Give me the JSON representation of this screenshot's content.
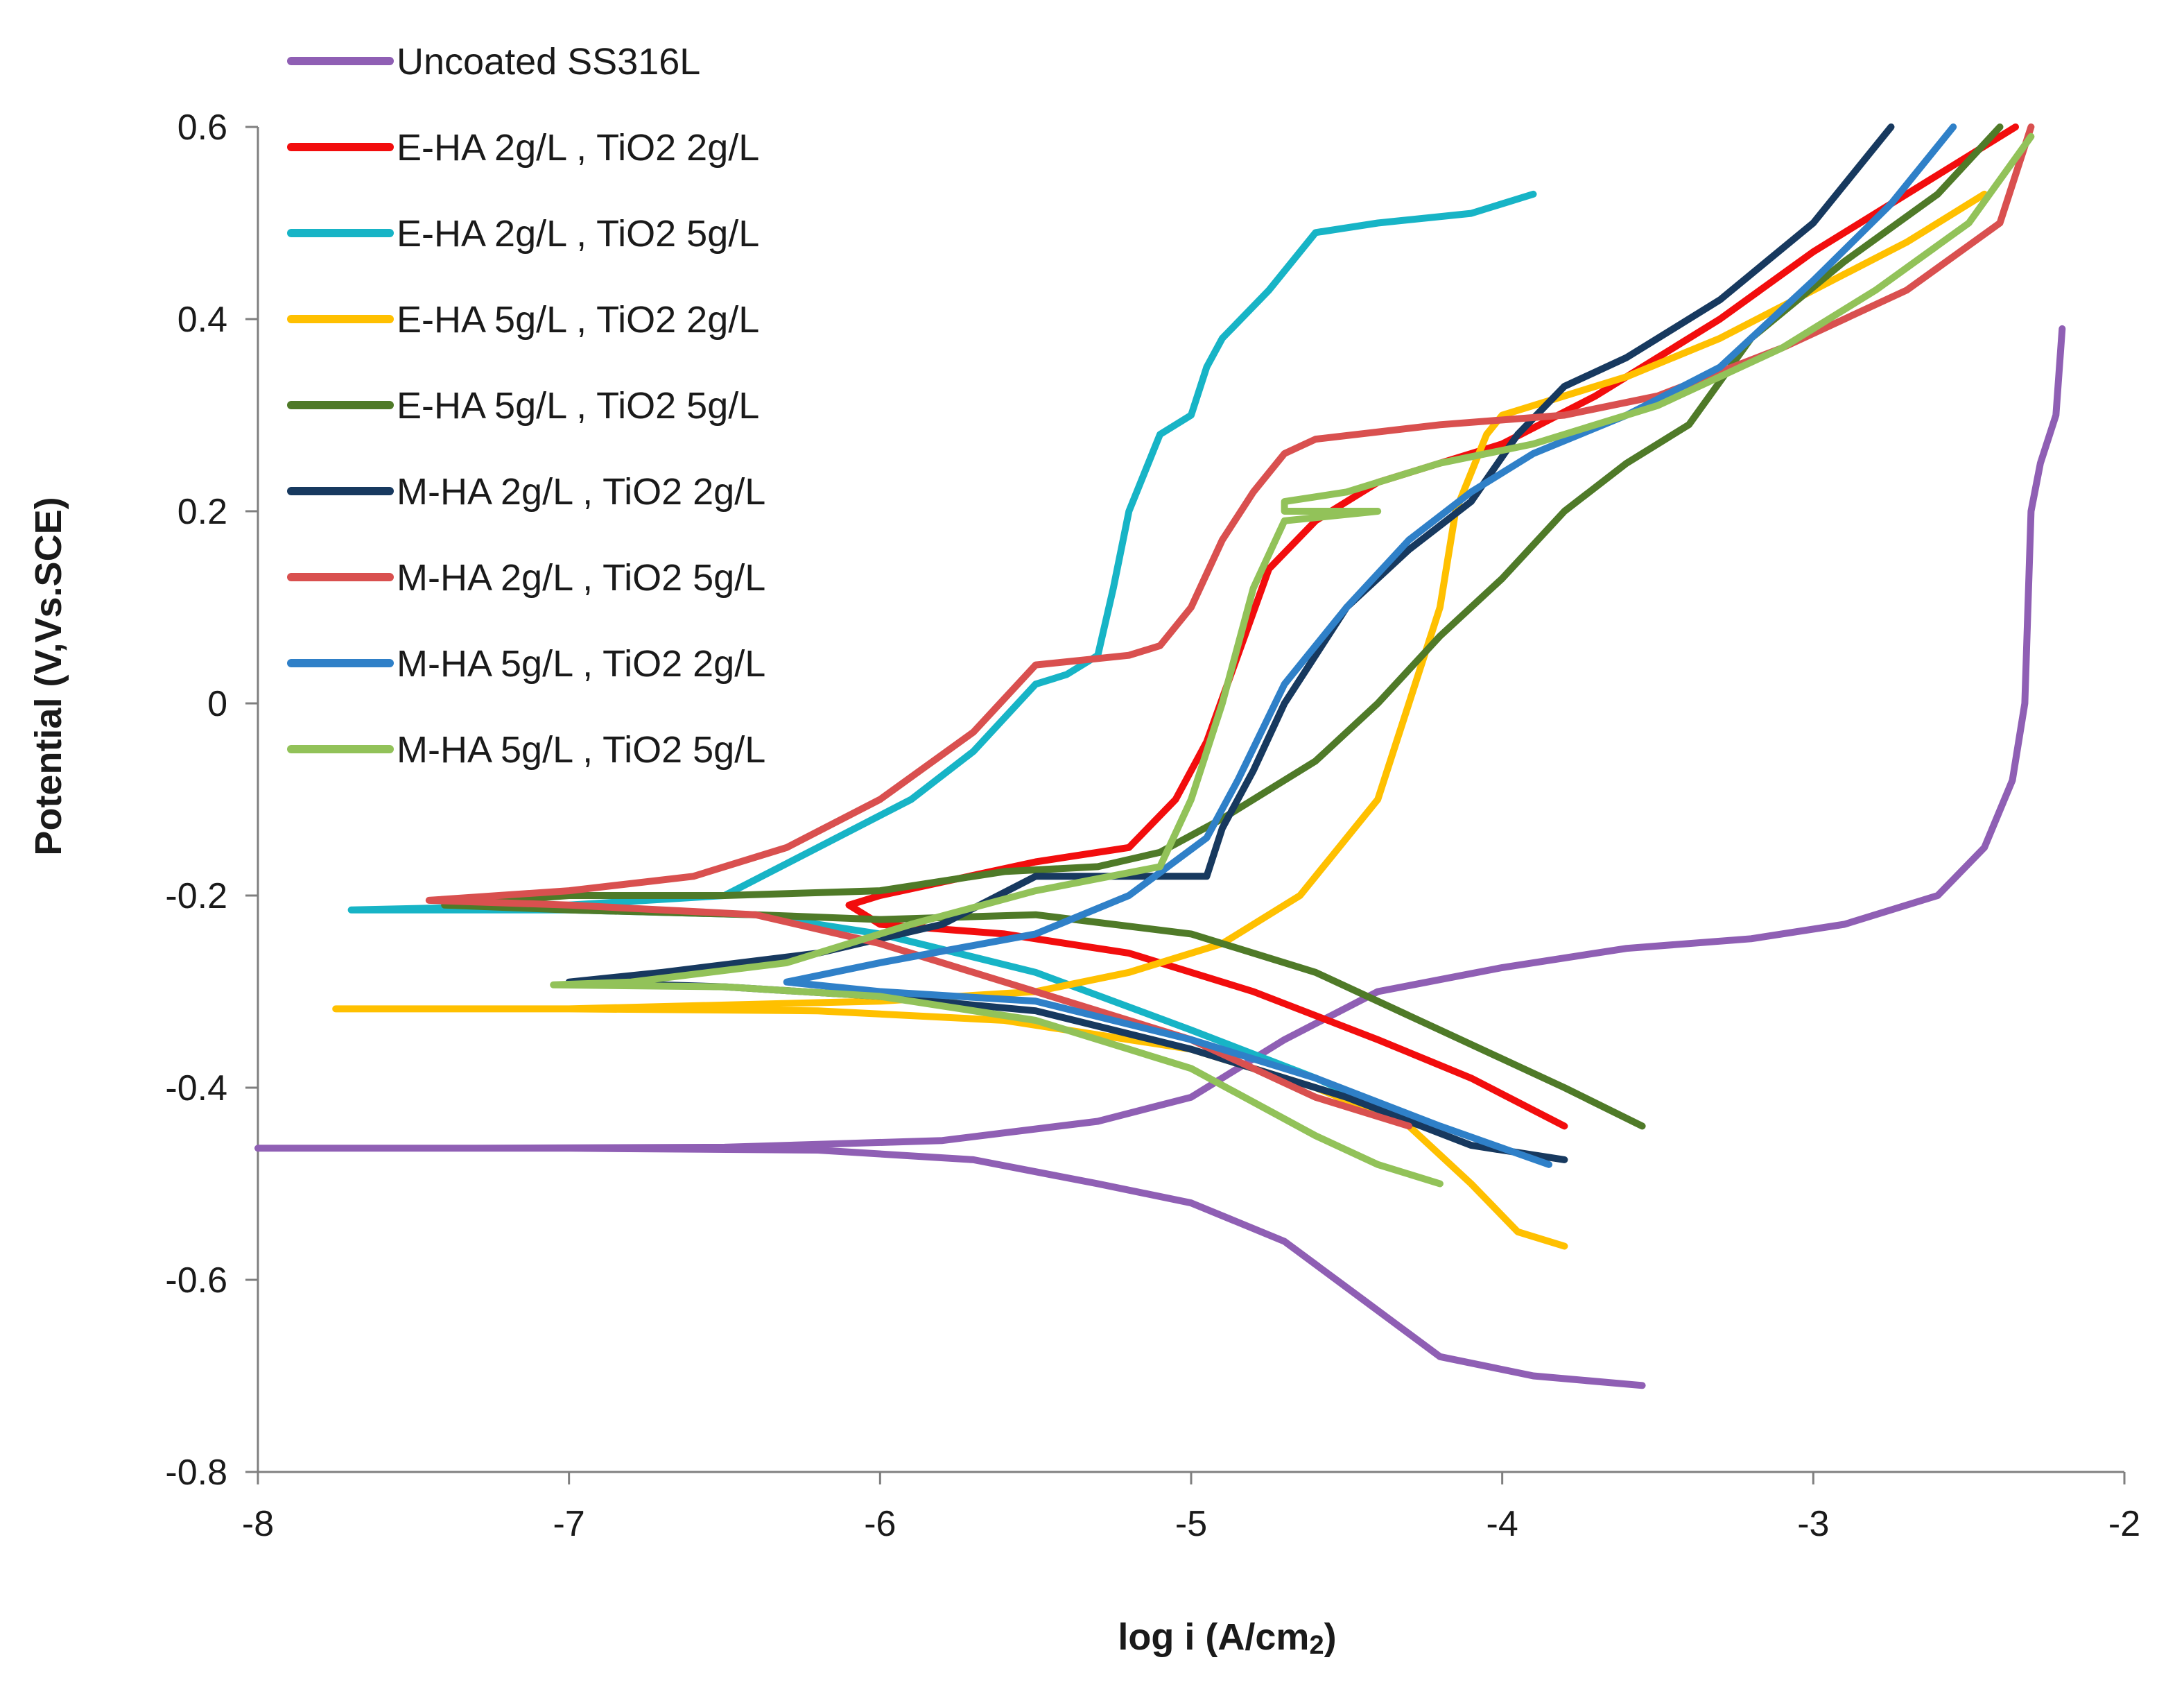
{
  "chart_data": {
    "type": "line",
    "xlabel": "log i (A/cm",
    "xlabel_sub": "2",
    "xlabel_end": ")",
    "ylabel": "Potential (V,Vs.SCE)",
    "xlim": [
      -8,
      -2
    ],
    "ylim": [
      -0.8,
      0.6
    ],
    "x_ticks": [
      -8,
      -7,
      -6,
      -5,
      -4,
      -3,
      -2
    ],
    "y_ticks": [
      -0.8,
      -0.6,
      -0.4,
      -0.2,
      0,
      0.2,
      0.4,
      0.6
    ],
    "x_tick_labels": [
      "-8",
      "-7",
      "-6",
      "-5",
      "-4",
      "-3",
      "-2"
    ],
    "y_tick_labels": [
      "-0.8",
      "-0.6",
      "-0.4",
      "-0.2",
      "0",
      "0.2",
      "0.4",
      "0.6"
    ],
    "legend_position": "top-left",
    "series": [
      {
        "name": "Uncoated SS316L",
        "color": "#8f5fb4",
        "points": [
          [
            -2.2,
            0.39
          ],
          [
            -2.22,
            0.3
          ],
          [
            -2.27,
            0.25
          ],
          [
            -2.3,
            0.2
          ],
          [
            -2.32,
            0.0
          ],
          [
            -2.36,
            -0.08
          ],
          [
            -2.45,
            -0.15
          ],
          [
            -2.6,
            -0.2
          ],
          [
            -2.9,
            -0.23
          ],
          [
            -3.2,
            -0.245
          ],
          [
            -3.6,
            -0.255
          ],
          [
            -4.0,
            -0.275
          ],
          [
            -4.4,
            -0.3
          ],
          [
            -4.7,
            -0.35
          ],
          [
            -5.0,
            -0.41
          ],
          [
            -5.3,
            -0.435
          ],
          [
            -5.8,
            -0.455
          ],
          [
            -6.5,
            -0.462
          ],
          [
            -7.3,
            -0.463
          ],
          [
            -8.0,
            -0.463
          ],
          [
            -7.0,
            -0.463
          ],
          [
            -6.2,
            -0.465
          ],
          [
            -5.7,
            -0.475
          ],
          [
            -5.3,
            -0.5
          ],
          [
            -5.0,
            -0.52
          ],
          [
            -4.7,
            -0.56
          ],
          [
            -4.45,
            -0.62
          ],
          [
            -4.2,
            -0.68
          ],
          [
            -3.9,
            -0.7
          ],
          [
            -3.55,
            -0.71
          ]
        ]
      },
      {
        "name": "E-HA 2g/L , TiO2 2g/L",
        "color": "#f20d0d",
        "points": [
          [
            -2.35,
            0.6
          ],
          [
            -2.6,
            0.55
          ],
          [
            -3.0,
            0.47
          ],
          [
            -3.3,
            0.4
          ],
          [
            -3.5,
            0.36
          ],
          [
            -3.7,
            0.32
          ],
          [
            -4.0,
            0.27
          ],
          [
            -4.4,
            0.23
          ],
          [
            -4.6,
            0.19
          ],
          [
            -4.75,
            0.14
          ],
          [
            -4.85,
            0.05
          ],
          [
            -4.95,
            -0.04
          ],
          [
            -5.05,
            -0.1
          ],
          [
            -5.2,
            -0.15
          ],
          [
            -5.5,
            -0.165
          ],
          [
            -6.0,
            -0.2
          ],
          [
            -6.1,
            -0.21
          ],
          [
            -6.0,
            -0.23
          ],
          [
            -5.6,
            -0.24
          ],
          [
            -5.2,
            -0.26
          ],
          [
            -4.8,
            -0.3
          ],
          [
            -4.4,
            -0.35
          ],
          [
            -4.1,
            -0.39
          ],
          [
            -3.8,
            -0.44
          ]
        ]
      },
      {
        "name": "E-HA 2g/L , TiO2 5g/L",
        "color": "#17b4c6",
        "points": [
          [
            -3.9,
            0.53
          ],
          [
            -4.1,
            0.51
          ],
          [
            -4.4,
            0.5
          ],
          [
            -4.6,
            0.49
          ],
          [
            -4.75,
            0.43
          ],
          [
            -4.9,
            0.38
          ],
          [
            -4.95,
            0.35
          ],
          [
            -5.0,
            0.3
          ],
          [
            -5.1,
            0.28
          ],
          [
            -5.2,
            0.2
          ],
          [
            -5.25,
            0.12
          ],
          [
            -5.3,
            0.05
          ],
          [
            -5.4,
            0.03
          ],
          [
            -5.5,
            0.02
          ],
          [
            -5.7,
            -0.05
          ],
          [
            -5.9,
            -0.1
          ],
          [
            -6.2,
            -0.15
          ],
          [
            -6.5,
            -0.2
          ],
          [
            -7.0,
            -0.21
          ],
          [
            -7.7,
            -0.215
          ],
          [
            -7.0,
            -0.215
          ],
          [
            -6.4,
            -0.22
          ],
          [
            -6.0,
            -0.24
          ],
          [
            -5.5,
            -0.28
          ],
          [
            -5.0,
            -0.34
          ],
          [
            -4.6,
            -0.39
          ],
          [
            -4.25,
            -0.44
          ]
        ]
      },
      {
        "name": "E-HA 5g/L , TiO2 2g/L",
        "color": "#ffc000",
        "points": [
          [
            -2.45,
            0.53
          ],
          [
            -2.7,
            0.48
          ],
          [
            -3.0,
            0.43
          ],
          [
            -3.3,
            0.38
          ],
          [
            -3.6,
            0.34
          ],
          [
            -3.8,
            0.32
          ],
          [
            -4.0,
            0.3
          ],
          [
            -4.05,
            0.28
          ],
          [
            -4.15,
            0.2
          ],
          [
            -4.2,
            0.1
          ],
          [
            -4.3,
            0.0
          ],
          [
            -4.4,
            -0.1
          ],
          [
            -4.55,
            -0.16
          ],
          [
            -4.65,
            -0.2
          ],
          [
            -4.9,
            -0.25
          ],
          [
            -5.2,
            -0.28
          ],
          [
            -5.5,
            -0.3
          ],
          [
            -6.0,
            -0.31
          ],
          [
            -7.0,
            -0.318
          ],
          [
            -7.75,
            -0.318
          ],
          [
            -7.0,
            -0.318
          ],
          [
            -6.2,
            -0.32
          ],
          [
            -5.6,
            -0.33
          ],
          [
            -5.0,
            -0.36
          ],
          [
            -4.6,
            -0.4
          ],
          [
            -4.3,
            -0.44
          ],
          [
            -4.1,
            -0.5
          ],
          [
            -3.95,
            -0.55
          ],
          [
            -3.8,
            -0.565
          ]
        ]
      },
      {
        "name": "E-HA 5g/L , TiO2 5g/L",
        "color": "#4f7a28",
        "points": [
          [
            -2.4,
            0.6
          ],
          [
            -2.6,
            0.53
          ],
          [
            -2.9,
            0.46
          ],
          [
            -3.2,
            0.38
          ],
          [
            -3.4,
            0.29
          ],
          [
            -3.6,
            0.25
          ],
          [
            -3.8,
            0.2
          ],
          [
            -4.0,
            0.13
          ],
          [
            -4.2,
            0.07
          ],
          [
            -4.4,
            0.0
          ],
          [
            -4.6,
            -0.06
          ],
          [
            -4.9,
            -0.12
          ],
          [
            -5.1,
            -0.155
          ],
          [
            -5.3,
            -0.17
          ],
          [
            -5.6,
            -0.175
          ],
          [
            -6.0,
            -0.195
          ],
          [
            -6.5,
            -0.2
          ],
          [
            -7.0,
            -0.2
          ],
          [
            -7.4,
            -0.21
          ],
          [
            -7.0,
            -0.215
          ],
          [
            -6.4,
            -0.22
          ],
          [
            -6.0,
            -0.225
          ],
          [
            -5.5,
            -0.22
          ],
          [
            -5.0,
            -0.24
          ],
          [
            -4.6,
            -0.28
          ],
          [
            -4.2,
            -0.34
          ],
          [
            -3.8,
            -0.4
          ],
          [
            -3.55,
            -0.44
          ]
        ]
      },
      {
        "name": "M-HA 2g/L , TiO2 2g/L",
        "color": "#17395f",
        "points": [
          [
            -2.75,
            0.6
          ],
          [
            -3.0,
            0.5
          ],
          [
            -3.3,
            0.42
          ],
          [
            -3.6,
            0.36
          ],
          [
            -3.8,
            0.33
          ],
          [
            -3.95,
            0.28
          ],
          [
            -4.1,
            0.21
          ],
          [
            -4.3,
            0.16
          ],
          [
            -4.5,
            0.1
          ],
          [
            -4.7,
            0.0
          ],
          [
            -4.8,
            -0.07
          ],
          [
            -4.9,
            -0.13
          ],
          [
            -4.95,
            -0.18
          ],
          [
            -5.2,
            -0.18
          ],
          [
            -5.5,
            -0.18
          ],
          [
            -5.8,
            -0.23
          ],
          [
            -6.2,
            -0.26
          ],
          [
            -6.7,
            -0.28
          ],
          [
            -7.0,
            -0.29
          ],
          [
            -6.5,
            -0.295
          ],
          [
            -6.0,
            -0.305
          ],
          [
            -5.5,
            -0.32
          ],
          [
            -5.0,
            -0.36
          ],
          [
            -4.5,
            -0.41
          ],
          [
            -4.1,
            -0.46
          ],
          [
            -3.8,
            -0.475
          ]
        ]
      },
      {
        "name": "M-HA 2g/L , TiO2 5g/L",
        "color": "#d9504f",
        "points": [
          [
            -2.3,
            0.6
          ],
          [
            -2.4,
            0.5
          ],
          [
            -2.7,
            0.43
          ],
          [
            -3.1,
            0.37
          ],
          [
            -3.5,
            0.32
          ],
          [
            -3.8,
            0.3
          ],
          [
            -4.2,
            0.29
          ],
          [
            -4.6,
            0.275
          ],
          [
            -4.7,
            0.26
          ],
          [
            -4.8,
            0.22
          ],
          [
            -4.9,
            0.17
          ],
          [
            -5.0,
            0.1
          ],
          [
            -5.1,
            0.06
          ],
          [
            -5.2,
            0.05
          ],
          [
            -5.5,
            0.04
          ],
          [
            -5.7,
            -0.03
          ],
          [
            -6.0,
            -0.1
          ],
          [
            -6.3,
            -0.15
          ],
          [
            -6.6,
            -0.18
          ],
          [
            -7.0,
            -0.195
          ],
          [
            -7.45,
            -0.205
          ],
          [
            -7.0,
            -0.21
          ],
          [
            -6.4,
            -0.22
          ],
          [
            -6.0,
            -0.25
          ],
          [
            -5.5,
            -0.3
          ],
          [
            -5.0,
            -0.35
          ],
          [
            -4.6,
            -0.41
          ],
          [
            -4.3,
            -0.44
          ]
        ]
      },
      {
        "name": "M-HA 5g/L , TiO2 2g/L",
        "color": "#2f80c8",
        "points": [
          [
            -2.55,
            0.6
          ],
          [
            -2.75,
            0.52
          ],
          [
            -3.0,
            0.44
          ],
          [
            -3.3,
            0.35
          ],
          [
            -3.6,
            0.3
          ],
          [
            -3.9,
            0.26
          ],
          [
            -4.1,
            0.22
          ],
          [
            -4.3,
            0.17
          ],
          [
            -4.5,
            0.1
          ],
          [
            -4.7,
            0.02
          ],
          [
            -4.85,
            -0.08
          ],
          [
            -4.95,
            -0.14
          ],
          [
            -5.2,
            -0.2
          ],
          [
            -5.5,
            -0.24
          ],
          [
            -6.0,
            -0.27
          ],
          [
            -6.3,
            -0.29
          ],
          [
            -6.0,
            -0.3
          ],
          [
            -5.5,
            -0.31
          ],
          [
            -5.0,
            -0.35
          ],
          [
            -4.6,
            -0.39
          ],
          [
            -4.2,
            -0.44
          ],
          [
            -3.85,
            -0.48
          ]
        ]
      },
      {
        "name": "M-HA 5g/L , TiO2 5g/L",
        "color": "#92c259",
        "points": [
          [
            -2.3,
            0.59
          ],
          [
            -2.5,
            0.5
          ],
          [
            -2.8,
            0.43
          ],
          [
            -3.1,
            0.37
          ],
          [
            -3.5,
            0.31
          ],
          [
            -3.9,
            0.27
          ],
          [
            -4.2,
            0.25
          ],
          [
            -4.5,
            0.22
          ],
          [
            -4.7,
            0.21
          ],
          [
            -4.7,
            0.2
          ],
          [
            -4.4,
            0.2
          ],
          [
            -4.7,
            0.19
          ],
          [
            -4.8,
            0.12
          ],
          [
            -4.9,
            0.0
          ],
          [
            -5.0,
            -0.1
          ],
          [
            -5.1,
            -0.17
          ],
          [
            -5.5,
            -0.195
          ],
          [
            -5.9,
            -0.23
          ],
          [
            -6.3,
            -0.27
          ],
          [
            -6.8,
            -0.29
          ],
          [
            -7.05,
            -0.293
          ],
          [
            -6.5,
            -0.295
          ],
          [
            -6.0,
            -0.305
          ],
          [
            -5.5,
            -0.33
          ],
          [
            -5.0,
            -0.38
          ],
          [
            -4.6,
            -0.45
          ],
          [
            -4.4,
            -0.48
          ],
          [
            -4.2,
            -0.5
          ]
        ]
      }
    ]
  }
}
